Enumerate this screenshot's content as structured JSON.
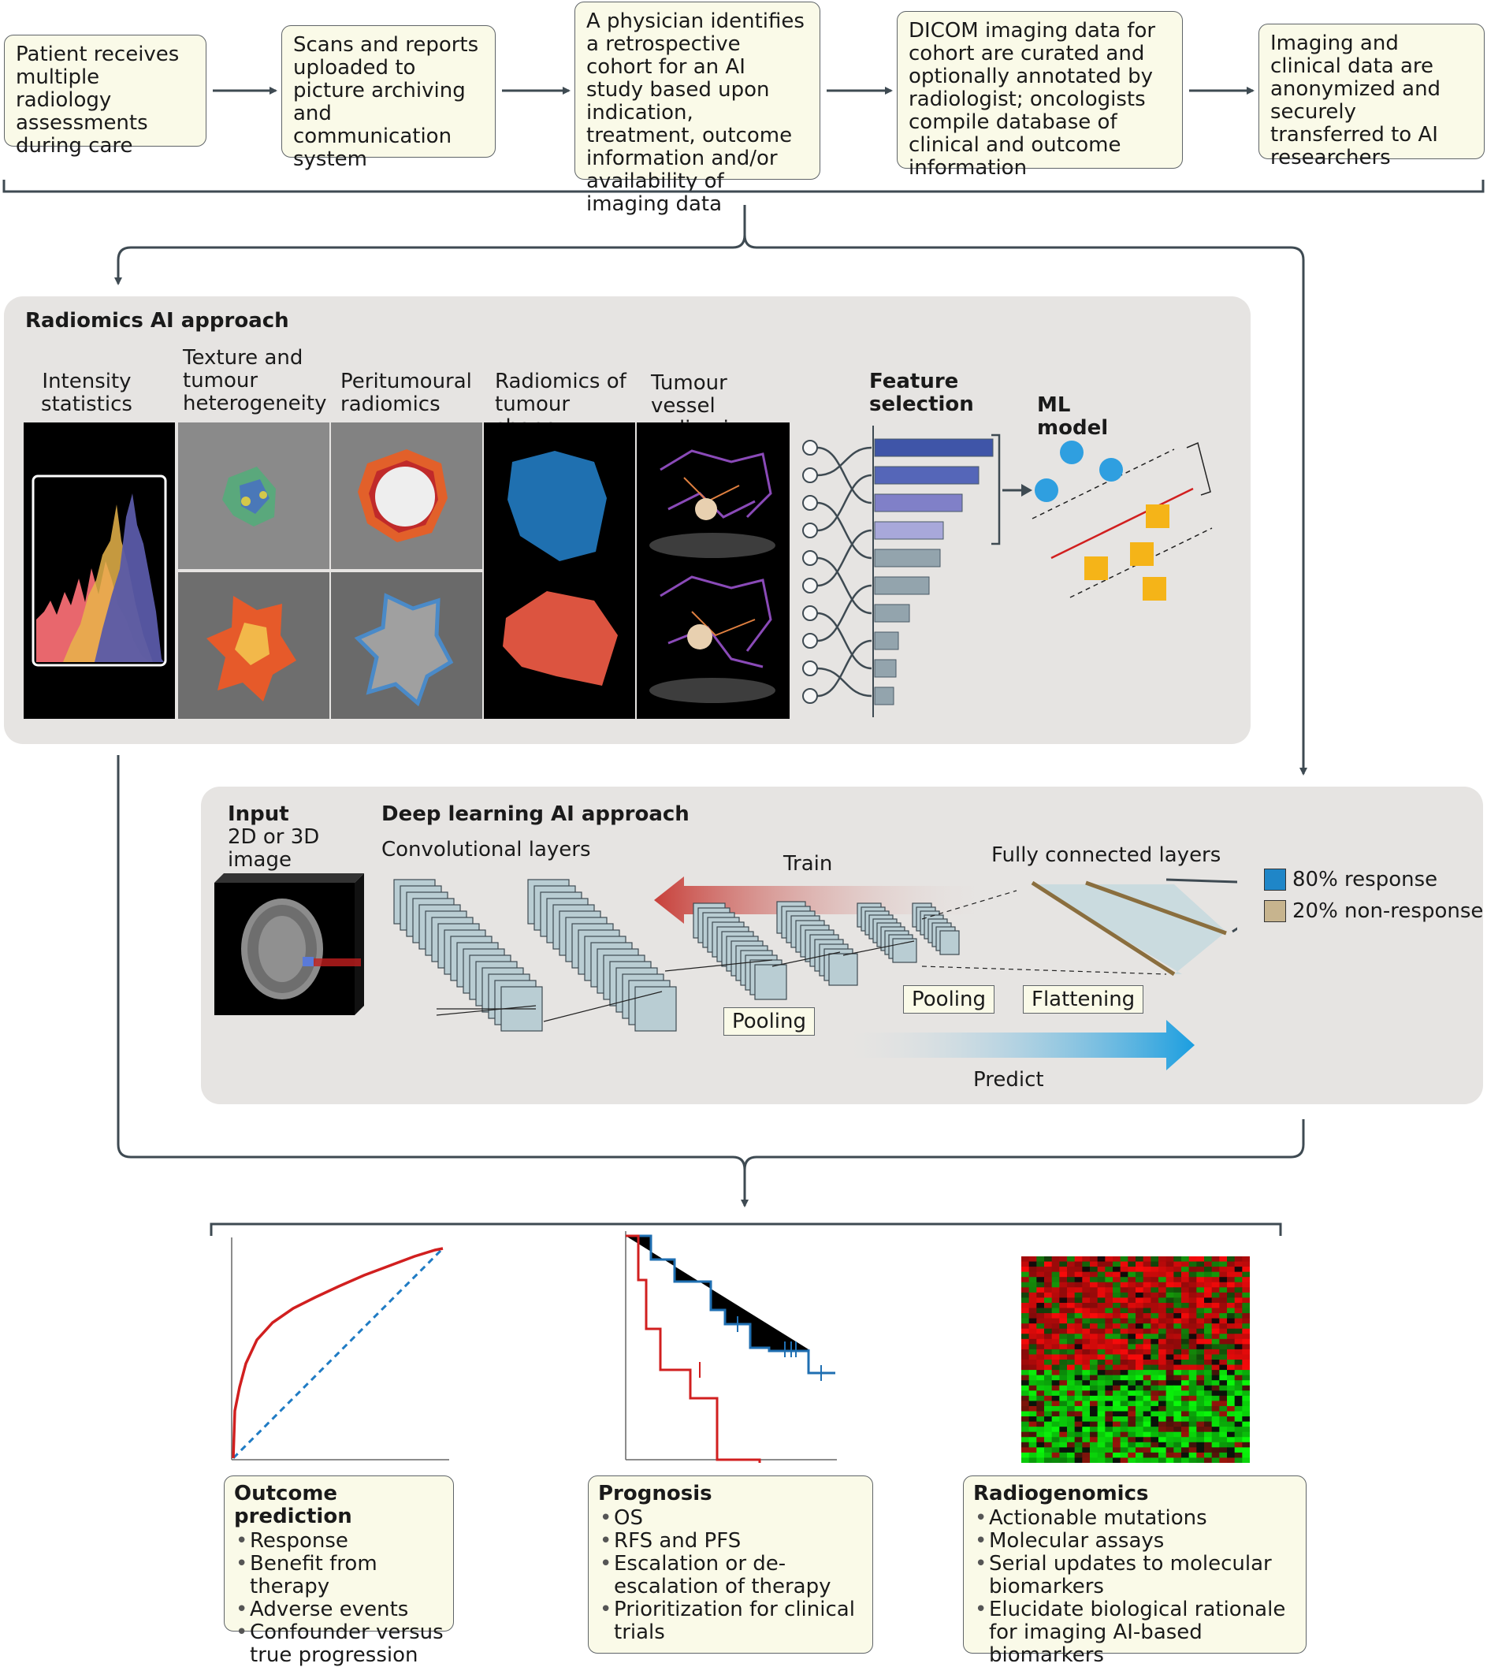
{
  "pipeline": {
    "steps": [
      {
        "text": "Patient receives multiple radiology assessments during care"
      },
      {
        "text": "Scans and reports uploaded to picture archiving and communication system"
      },
      {
        "text": "A physician identifies a retrospective cohort for an AI study based upon indication, treatment, outcome information and/or availability of imaging data"
      },
      {
        "text": "DICOM imaging data for cohort are curated and optionally annotated by radiologist; oncologists compile database of clinical and outcome information"
      },
      {
        "text": "Imaging and clinical data are anonymized and securely transferred to AI researchers"
      }
    ]
  },
  "radiomics": {
    "title": "Radiomics AI approach",
    "columns": [
      {
        "label": "Intensity statistics"
      },
      {
        "label": "Texture and tumour heterogeneity"
      },
      {
        "label": "Peritumoural radiomics"
      },
      {
        "label": "Radiomics of tumour shape"
      },
      {
        "label": "Tumour vessel radiomics"
      }
    ],
    "feature_selection": "Feature selection",
    "ml_model": "ML model",
    "feature_bars": [
      1.0,
      0.88,
      0.74,
      0.58,
      0.55,
      0.46,
      0.29,
      0.2,
      0.18,
      0.16
    ],
    "bar_colors": [
      "#3f55a8",
      "#5566b8",
      "#8080c8",
      "#a8a8da",
      "#93a4ad",
      "#93a4ad",
      "#93a4ad",
      "#93a4ad",
      "#93a4ad",
      "#93a4ad"
    ],
    "colors": {
      "circle": "#2f9fe0",
      "square": "#f5b418",
      "hyperplane": "#d11f1f"
    }
  },
  "deep": {
    "input_title": "Input",
    "input_sub": "2D or 3D image data",
    "title": "Deep learning AI approach",
    "conv_label": "Convolutional layers",
    "train": "Train",
    "fc_label": "Fully connected layers",
    "pooling1": "Pooling",
    "pooling2": "Pooling",
    "flattening": "Flattening",
    "predict": "Predict",
    "outputs": [
      {
        "label": "80% response",
        "color": "#1f86c8"
      },
      {
        "label": "20% non-response",
        "color": "#c7b48e"
      }
    ]
  },
  "outcomes": [
    {
      "title": "Outcome prediction",
      "items": [
        "Response",
        "Benefit from therapy",
        "Adverse events",
        "Confounder versus true progression"
      ]
    },
    {
      "title": "Prognosis",
      "items": [
        "OS",
        "RFS and PFS",
        "Escalation or de-escalation of therapy",
        "Prioritization for clinical trials"
      ]
    },
    {
      "title": "Radiogenomics",
      "items": [
        "Actionable mutations",
        "Molecular assays",
        "Serial updates to molecular biomarkers",
        "Elucidate biological rationale for imaging AI-based biomarkers"
      ]
    }
  ],
  "colors": {
    "connector": "#3e4a52",
    "panel": "#e6e4e2",
    "box": "#fafae8"
  }
}
